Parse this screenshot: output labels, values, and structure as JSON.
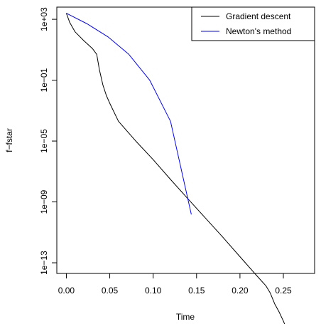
{
  "chart_data": {
    "type": "line",
    "title": "",
    "xlabel": "Time",
    "ylabel": "f−fstar",
    "xlim": [
      -0.011,
      0.286
    ],
    "ylog": true,
    "ylim_log10": [
      -13.7,
      3.8
    ],
    "x_ticks": [
      0.0,
      0.05,
      0.1,
      0.15,
      0.2,
      0.25
    ],
    "x_tick_labels": [
      "0.00",
      "0.05",
      "0.10",
      "0.15",
      "0.20",
      "0.25"
    ],
    "y_ticks_log10": [
      3,
      -1,
      -5,
      -9,
      -13
    ],
    "y_tick_labels": [
      "1e+03",
      "1e−01",
      "1e−05",
      "1e−09",
      "1e−13"
    ],
    "grid": false,
    "legend_position": "top-right",
    "series": [
      {
        "name": "Gradient descent",
        "color": "#000000",
        "x": [
          0.0,
          0.004,
          0.01,
          0.02,
          0.03,
          0.035,
          0.038,
          0.042,
          0.046,
          0.05,
          0.06,
          0.08,
          0.1,
          0.12,
          0.14,
          0.16,
          0.18,
          0.2,
          0.22,
          0.23,
          0.235,
          0.24,
          0.245,
          0.25,
          0.252,
          0.275
        ],
        "y": [
          2500.0,
          600,
          150,
          40,
          12,
          5,
          0.5,
          0.05,
          0.01,
          0.003,
          0.0002,
          1e-05,
          6e-07,
          3e-08,
          1.6e-09,
          9e-11,
          5e-12,
          2.5e-13,
          1.3e-14,
          3e-15,
          1e-15,
          2e-16,
          6e-17,
          1.5e-17,
          8e-18,
          8e-18
        ]
      },
      {
        "name": "Newton's method",
        "color": "#0000ff",
        "x": [
          0.0,
          0.024,
          0.048,
          0.072,
          0.096,
          0.12,
          0.144
        ],
        "y": [
          2500.0,
          500,
          70,
          5,
          0.1,
          0.0002,
          1.5e-10
        ]
      }
    ]
  }
}
